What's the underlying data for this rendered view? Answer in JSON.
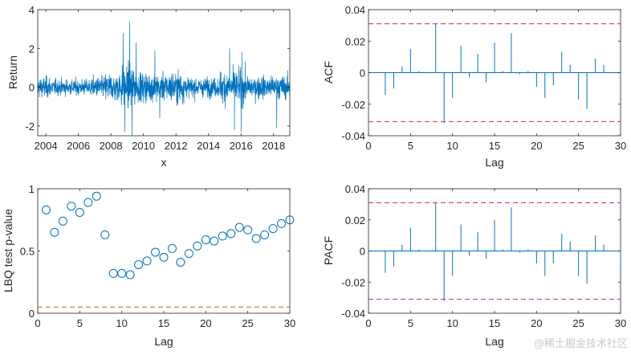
{
  "colors": {
    "series": "#0072BD",
    "band": "#D95319",
    "ci": "#C0304A",
    "axis": "#262626"
  },
  "watermark": "@稀土掘金技术社区",
  "chart_data": [
    {
      "id": "returns",
      "type": "line",
      "xlabel": "x",
      "ylabel": "Return",
      "xlim": [
        2003.5,
        2019.0
      ],
      "ylim": [
        -2.5,
        4
      ],
      "xticks": [
        "2004",
        "2006",
        "2008",
        "2010",
        "2012",
        "2014",
        "2016",
        "2018"
      ],
      "yticks": [
        "-2",
        "0",
        "2",
        "4"
      ],
      "volatility_regimes": [
        {
          "from": 2003.5,
          "to": 2004.3,
          "amp": 0.6
        },
        {
          "from": 2004.3,
          "to": 2006.8,
          "amp": 0.45
        },
        {
          "from": 2006.8,
          "to": 2007.6,
          "amp": 0.6
        },
        {
          "from": 2007.6,
          "to": 2008.6,
          "amp": 0.8
        },
        {
          "from": 2008.6,
          "to": 2009.6,
          "amp": 1.25
        },
        {
          "from": 2009.6,
          "to": 2010.6,
          "amp": 0.85
        },
        {
          "from": 2010.6,
          "to": 2011.5,
          "amp": 0.75
        },
        {
          "from": 2011.5,
          "to": 2012.6,
          "amp": 0.9
        },
        {
          "from": 2012.6,
          "to": 2014.7,
          "amp": 0.55
        },
        {
          "from": 2014.7,
          "to": 2016.3,
          "amp": 0.95
        },
        {
          "from": 2016.3,
          "to": 2019.0,
          "amp": 0.65
        }
      ],
      "extremes": [
        {
          "x": 2008.75,
          "y": 2.8
        },
        {
          "x": 2008.85,
          "y": -2.3
        },
        {
          "x": 2009.15,
          "y": 3.4
        },
        {
          "x": 2009.3,
          "y": -2.5
        },
        {
          "x": 2009.55,
          "y": 2.3
        },
        {
          "x": 2010.7,
          "y": 1.9
        },
        {
          "x": 2011.0,
          "y": -1.6
        },
        {
          "x": 2015.3,
          "y": 2.0
        },
        {
          "x": 2015.6,
          "y": -2.2
        },
        {
          "x": 2016.0,
          "y": -2.3
        },
        {
          "x": 2016.05,
          "y": 1.8
        },
        {
          "x": 2018.2,
          "y": -2.1
        }
      ]
    },
    {
      "id": "acf",
      "type": "stem",
      "xlabel": "Lag",
      "ylabel": "ACF",
      "xlim": [
        0,
        30
      ],
      "ylim": [
        -0.04,
        0.04
      ],
      "xticks": [
        "0",
        "5",
        "10",
        "15",
        "20",
        "25",
        "30"
      ],
      "yticks": [
        "-0.04",
        "-0.02",
        "0",
        "0.02",
        "0.04"
      ],
      "conf_bound": 0.031,
      "lags": [
        1,
        2,
        3,
        4,
        5,
        6,
        7,
        8,
        9,
        10,
        11,
        12,
        13,
        14,
        15,
        16,
        17,
        18,
        19,
        20,
        21,
        22,
        23,
        24,
        25,
        26,
        27,
        28,
        29,
        30
      ],
      "values": [
        0.0,
        -0.014,
        -0.01,
        0.004,
        0.015,
        0.001,
        0.0,
        0.031,
        -0.032,
        -0.016,
        0.017,
        -0.003,
        0.012,
        -0.006,
        0.019,
        0.001,
        0.025,
        -0.001,
        0.001,
        -0.009,
        -0.016,
        -0.008,
        0.013,
        0.005,
        -0.017,
        -0.023,
        0.009,
        0.005,
        0.0,
        -0.002
      ]
    },
    {
      "id": "lbq",
      "type": "scatter",
      "xlabel": "Lag",
      "ylabel": "LBQ test p-value",
      "xlim": [
        0,
        30
      ],
      "ylim": [
        0,
        1
      ],
      "xticks": [
        "0",
        "5",
        "10",
        "15",
        "20",
        "25",
        "30"
      ],
      "yticks": [
        "0",
        "0.5",
        "1"
      ],
      "threshold": 0.05,
      "lags": [
        1,
        2,
        3,
        4,
        5,
        6,
        7,
        8,
        9,
        10,
        11,
        12,
        13,
        14,
        15,
        16,
        17,
        18,
        19,
        20,
        21,
        22,
        23,
        24,
        25,
        26,
        27,
        28,
        29,
        30
      ],
      "values": [
        0.83,
        0.65,
        0.74,
        0.86,
        0.81,
        0.89,
        0.94,
        0.63,
        0.32,
        0.32,
        0.31,
        0.39,
        0.42,
        0.49,
        0.45,
        0.52,
        0.41,
        0.48,
        0.54,
        0.59,
        0.58,
        0.62,
        0.64,
        0.69,
        0.67,
        0.6,
        0.63,
        0.68,
        0.72,
        0.75
      ]
    },
    {
      "id": "pacf",
      "type": "stem",
      "xlabel": "Lag",
      "ylabel": "PACF",
      "xlim": [
        0,
        30
      ],
      "ylim": [
        -0.04,
        0.04
      ],
      "xticks": [
        "0",
        "5",
        "10",
        "15",
        "20",
        "25",
        "30"
      ],
      "yticks": [
        "-0.04",
        "-0.02",
        "0",
        "0.02",
        "0.04"
      ],
      "conf_bound": 0.031,
      "lags": [
        1,
        2,
        3,
        4,
        5,
        6,
        7,
        8,
        9,
        10,
        11,
        12,
        13,
        14,
        15,
        16,
        17,
        18,
        19,
        20,
        21,
        22,
        23,
        24,
        25,
        26,
        27,
        28,
        29,
        30
      ],
      "values": [
        0.0,
        -0.014,
        -0.01,
        0.004,
        0.015,
        0.001,
        0.0,
        0.031,
        -0.032,
        -0.016,
        0.017,
        -0.003,
        0.012,
        -0.005,
        0.02,
        0.001,
        0.028,
        -0.001,
        0.001,
        -0.008,
        -0.016,
        -0.008,
        0.011,
        0.006,
        -0.016,
        -0.021,
        0.01,
        0.004,
        0.0,
        -0.011
      ]
    }
  ]
}
